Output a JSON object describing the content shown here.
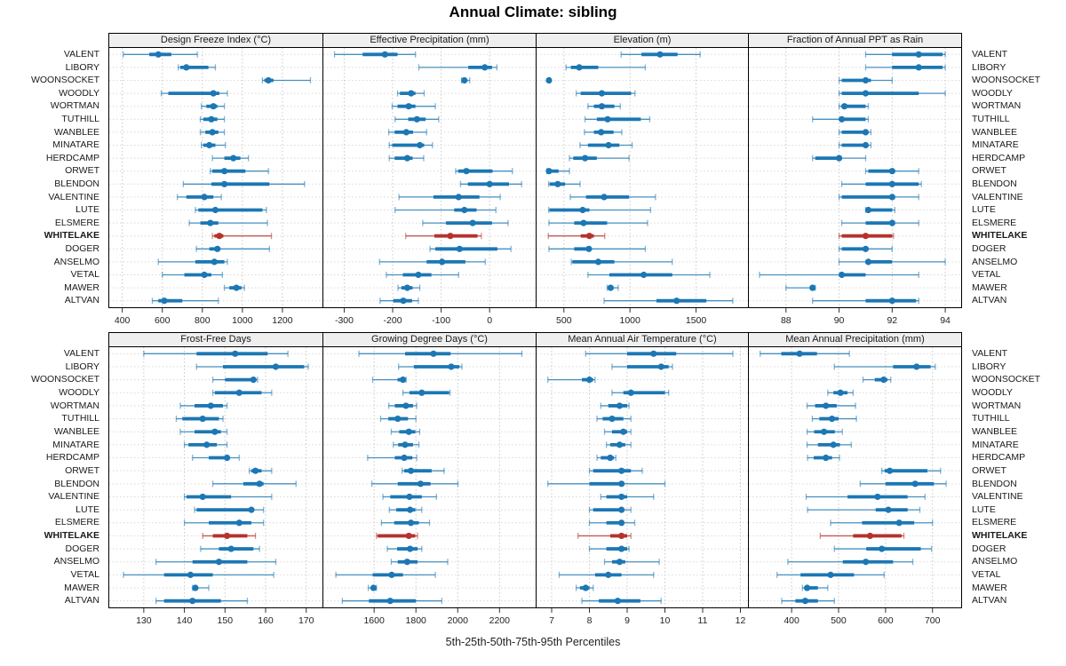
{
  "title": "Annual Climate: sibling",
  "caption": "5th-25th-50th-75th-95th Percentiles",
  "percentile_labels": [
    "5th",
    "25th",
    "50th",
    "75th",
    "95th"
  ],
  "highlight_station": "WHITELAKE",
  "stations": [
    "VALENT",
    "LIBORY",
    "WOONSOCKET",
    "WOODLY",
    "WORTMAN",
    "TUTHILL",
    "WANBLEE",
    "MINATARE",
    "HERDCAMP",
    "ORWET",
    "BLENDON",
    "VALENTINE",
    "LUTE",
    "ELSMERE",
    "WHITELAKE",
    "DOGER",
    "ANSELMO",
    "VETAL",
    "MAWER",
    "ALTVAN"
  ],
  "colors": {
    "series": "#1c77b4",
    "highlight": "#b5322d",
    "header_bg": "#efefef",
    "border": "#000000",
    "gridline": "#c9c9c9",
    "rowline": "#d9d9d9",
    "tick_text": "#222222"
  },
  "chart_data": [
    {
      "type": "dot-whisker",
      "block": 0,
      "title": "Design Freeze Index (°C)",
      "xlim": [
        335,
        1400
      ],
      "ticks": [
        400,
        600,
        800,
        1000,
        1200
      ],
      "values": [
        [
          405,
          535,
          580,
          645,
          775
        ],
        [
          680,
          690,
          720,
          830,
          865
        ],
        [
          1100,
          1110,
          1130,
          1155,
          1340
        ],
        [
          595,
          630,
          855,
          885,
          925
        ],
        [
          795,
          820,
          855,
          875,
          910
        ],
        [
          790,
          805,
          845,
          875,
          910
        ],
        [
          790,
          815,
          850,
          880,
          910
        ],
        [
          795,
          805,
          835,
          865,
          915
        ],
        [
          850,
          910,
          955,
          990,
          1030
        ],
        [
          840,
          850,
          910,
          1015,
          1130
        ],
        [
          705,
          845,
          910,
          1135,
          1310
        ],
        [
          675,
          720,
          810,
          855,
          895
        ],
        [
          765,
          780,
          865,
          1100,
          1120
        ],
        [
          735,
          790,
          840,
          880,
          1125
        ],
        [
          850,
          860,
          885,
          905,
          1145
        ],
        [
          770,
          835,
          875,
          890,
          1135
        ],
        [
          580,
          765,
          860,
          910,
          925
        ],
        [
          600,
          710,
          810,
          845,
          900
        ],
        [
          910,
          935,
          970,
          995,
          1010
        ],
        [
          550,
          580,
          610,
          700,
          880
        ]
      ]
    },
    {
      "type": "dot-whisker",
      "block": 0,
      "title": "Effective Precipitation (mm)",
      "xlim": [
        -343,
        95
      ],
      "ticks": [
        -300,
        -200,
        -100,
        0
      ],
      "values": [
        [
          -320,
          -262,
          -216,
          -190,
          -153
        ],
        [
          -146,
          -44,
          -10,
          5,
          15
        ],
        [
          -58,
          -55,
          -52,
          -46,
          -41
        ],
        [
          -190,
          -185,
          -162,
          -153,
          -135
        ],
        [
          -201,
          -190,
          -167,
          -153,
          -112
        ],
        [
          -195,
          -168,
          -150,
          -132,
          -105
        ],
        [
          -208,
          -196,
          -172,
          -158,
          -130
        ],
        [
          -207,
          -201,
          -144,
          -135,
          -118
        ],
        [
          -207,
          -196,
          -170,
          -159,
          -136
        ],
        [
          -70,
          -65,
          -48,
          6,
          47
        ],
        [
          -60,
          -45,
          0,
          40,
          66
        ],
        [
          -187,
          -116,
          -64,
          -21,
          22
        ],
        [
          -195,
          -73,
          -52,
          -27,
          13
        ],
        [
          -138,
          -90,
          -35,
          5,
          38
        ],
        [
          -173,
          -114,
          -81,
          -25,
          -17
        ],
        [
          -123,
          -112,
          -62,
          16,
          44
        ],
        [
          -227,
          -130,
          -98,
          -50,
          -9
        ],
        [
          -213,
          -179,
          -147,
          -120,
          -64
        ],
        [
          -189,
          -182,
          -170,
          -159,
          -144
        ],
        [
          -226,
          -199,
          -178,
          -160,
          -147
        ]
      ]
    },
    {
      "type": "dot-whisker",
      "block": 0,
      "title": "Elevation (m)",
      "xlim": [
        293,
        1893
      ],
      "ticks": [
        500,
        1000,
        1500
      ],
      "values": [
        [
          933,
          1087,
          1227,
          1360,
          1531
        ],
        [
          516,
          553,
          616,
          760,
          1116
        ],
        [
          380,
          383,
          387,
          391,
          396
        ],
        [
          593,
          627,
          787,
          1009,
          1038
        ],
        [
          682,
          727,
          787,
          882,
          927
        ],
        [
          660,
          749,
          831,
          1082,
          1149
        ],
        [
          656,
          727,
          782,
          876,
          938
        ],
        [
          622,
          682,
          838,
          920,
          1016
        ],
        [
          542,
          571,
          660,
          749,
          993
        ],
        [
          371,
          375,
          387,
          460,
          542
        ],
        [
          385,
          393,
          453,
          509,
          622
        ],
        [
          549,
          667,
          804,
          993,
          1193
        ],
        [
          385,
          391,
          642,
          693,
          1156
        ],
        [
          387,
          578,
          649,
          827,
          1133
        ],
        [
          382,
          627,
          693,
          727,
          809
        ],
        [
          387,
          578,
          689,
          704,
          1116
        ],
        [
          556,
          564,
          760,
          882,
          1320
        ],
        [
          682,
          844,
          1104,
          1320,
          1604
        ],
        [
          827,
          838,
          853,
          876,
          911
        ],
        [
          804,
          1200,
          1353,
          1578,
          1778
        ]
      ]
    },
    {
      "type": "dot-whisker",
      "block": 0,
      "title": "Fraction of Annual PPT as Rain",
      "xlim": [
        86.6,
        94.6
      ],
      "ticks": [
        88,
        90,
        92,
        94
      ],
      "values": [
        [
          91,
          92,
          93,
          93.9,
          94
        ],
        [
          91,
          92,
          93,
          93.9,
          94
        ],
        [
          90,
          90.1,
          91,
          91.2,
          92
        ],
        [
          90,
          90.1,
          91,
          93,
          94
        ],
        [
          90,
          90.1,
          90.2,
          91,
          91.1
        ],
        [
          89,
          90,
          90.1,
          91,
          91.1
        ],
        [
          90,
          90.1,
          91,
          91.1,
          91.2
        ],
        [
          90,
          90.1,
          91,
          91.1,
          91.2
        ],
        [
          89,
          89.1,
          90,
          90.1,
          91
        ],
        [
          91,
          91.1,
          92,
          92.1,
          93
        ],
        [
          90.1,
          91,
          92,
          93,
          93.1
        ],
        [
          90,
          90.1,
          92,
          92.1,
          93
        ],
        [
          91,
          91.05,
          91.1,
          92,
          92.1
        ],
        [
          90.1,
          91,
          92,
          92.1,
          93
        ],
        [
          90,
          90.1,
          91,
          92,
          92.05
        ],
        [
          90,
          90.1,
          91,
          91.1,
          92
        ],
        [
          90,
          91,
          91.1,
          92,
          94
        ],
        [
          87,
          90,
          90.1,
          91,
          93
        ],
        [
          88,
          88.9,
          89,
          89.05,
          89.1
        ],
        [
          89,
          91,
          92,
          92.9,
          93
        ]
      ]
    },
    {
      "type": "dot-whisker",
      "block": 1,
      "title": "Frost-Free Days",
      "xlim": [
        121.5,
        174
      ],
      "ticks": [
        130,
        140,
        150,
        160,
        170
      ],
      "values": [
        [
          130,
          143,
          152.5,
          160.5,
          165.5
        ],
        [
          143,
          149.5,
          162.5,
          169.5,
          170.5
        ],
        [
          147,
          150,
          157,
          157.5,
          158
        ],
        [
          147,
          147.5,
          153.5,
          159,
          161.5
        ],
        [
          139,
          142.5,
          146.5,
          149.5,
          150.5
        ],
        [
          138,
          139.5,
          144.5,
          148.5,
          149.5
        ],
        [
          139,
          142.5,
          147.5,
          149,
          150.5
        ],
        [
          140,
          141,
          145.5,
          148,
          150.5
        ],
        [
          142,
          146,
          150.5,
          151,
          153.5
        ],
        [
          156,
          156.5,
          157.5,
          159,
          161.5
        ],
        [
          147,
          154.5,
          158.5,
          159.5,
          167.5
        ],
        [
          140,
          140.5,
          144.5,
          151.5,
          161.5
        ],
        [
          142.5,
          143,
          156.5,
          157,
          159.5
        ],
        [
          140,
          146,
          153.5,
          156.5,
          159.5
        ],
        [
          144.5,
          147,
          150.5,
          155.5,
          157.5
        ],
        [
          144,
          148.5,
          151.5,
          157,
          158.5
        ],
        [
          133,
          142,
          148.5,
          155.5,
          162.5
        ],
        [
          125,
          135,
          141.5,
          147,
          162
        ],
        [
          142,
          142.2,
          142.7,
          143,
          146
        ],
        [
          133,
          135,
          142,
          149,
          155.5
        ]
      ]
    },
    {
      "type": "dot-whisker",
      "block": 1,
      "title": "Growing Degree Days (°C)",
      "xlim": [
        1357,
        2373
      ],
      "ticks": [
        1600,
        1800,
        2000,
        2200
      ],
      "values": [
        [
          1527,
          1748,
          1884,
          1966,
          2307
        ],
        [
          1717,
          1790,
          1969,
          2008,
          2020
        ],
        [
          1593,
          1712,
          1738,
          1750,
          1753
        ],
        [
          1738,
          1769,
          1828,
          1959,
          1963
        ],
        [
          1670,
          1699,
          1752,
          1786,
          1804
        ],
        [
          1631,
          1668,
          1713,
          1762,
          1800
        ],
        [
          1682,
          1720,
          1766,
          1797,
          1818
        ],
        [
          1692,
          1715,
          1748,
          1786,
          1814
        ],
        [
          1569,
          1699,
          1744,
          1783,
          1804
        ],
        [
          1734,
          1744,
          1776,
          1875,
          1935
        ],
        [
          1589,
          1713,
          1822,
          1870,
          2001
        ],
        [
          1642,
          1677,
          1769,
          1828,
          1898
        ],
        [
          1673,
          1706,
          1772,
          1797,
          1828
        ],
        [
          1635,
          1696,
          1776,
          1814,
          1865
        ],
        [
          1611,
          1617,
          1766,
          1797,
          1808
        ],
        [
          1663,
          1710,
          1772,
          1808,
          1828
        ],
        [
          1682,
          1713,
          1758,
          1808,
          1952
        ],
        [
          1417,
          1593,
          1684,
          1738,
          1893
        ],
        [
          1572,
          1590,
          1597,
          1603,
          1611
        ],
        [
          1448,
          1575,
          1677,
          1800,
          1924
        ]
      ]
    },
    {
      "type": "dot-whisker",
      "block": 1,
      "title": "Mean Annual Air Temperature (°C)",
      "xlim": [
        6.6,
        12.2
      ],
      "ticks": [
        7,
        8,
        9,
        10,
        11,
        12
      ],
      "values": [
        [
          7.9,
          9.0,
          9.7,
          10.3,
          11.8
        ],
        [
          8.6,
          9.0,
          9.9,
          10.1,
          10.2
        ],
        [
          6.9,
          7.8,
          8.0,
          8.1,
          8.15
        ],
        [
          8.6,
          8.9,
          9.1,
          10.0,
          10.1
        ],
        [
          8.3,
          8.5,
          8.8,
          9.0,
          9.05
        ],
        [
          8.2,
          8.35,
          8.6,
          8.9,
          9.1
        ],
        [
          8.4,
          8.6,
          8.9,
          9.0,
          9.1
        ],
        [
          8.45,
          8.55,
          8.8,
          8.95,
          9.1
        ],
        [
          8.2,
          8.3,
          8.55,
          8.65,
          8.7
        ],
        [
          8.0,
          8.1,
          8.85,
          9.1,
          9.4
        ],
        [
          6.9,
          8.0,
          8.85,
          8.9,
          10.0
        ],
        [
          8.3,
          8.45,
          8.85,
          9.0,
          9.7
        ],
        [
          8.0,
          8.1,
          8.85,
          8.9,
          9.1
        ],
        [
          8.0,
          8.45,
          8.85,
          8.9,
          9.2
        ],
        [
          7.7,
          8.55,
          8.85,
          9.0,
          9.1
        ],
        [
          8.0,
          8.45,
          8.85,
          9.0,
          9.05
        ],
        [
          8.4,
          8.6,
          8.8,
          8.95,
          9.85
        ],
        [
          7.2,
          8.15,
          8.5,
          8.85,
          9.7
        ],
        [
          7.65,
          7.75,
          7.9,
          8.0,
          8.1
        ],
        [
          7.8,
          8.25,
          8.75,
          9.35,
          9.9
        ]
      ]
    },
    {
      "type": "dot-whisker",
      "block": 1,
      "title": "Mean Annual Precipitation (mm)",
      "xlim": [
        309,
        761
      ],
      "ticks": [
        400,
        500,
        600,
        700
      ],
      "values": [
        [
          333,
          378,
          417,
          454,
          523
        ],
        [
          491,
          616,
          666,
          696,
          706
        ],
        [
          552,
          577,
          596,
          604,
          611
        ],
        [
          477,
          489,
          504,
          519,
          531
        ],
        [
          433,
          450,
          473,
          496,
          536
        ],
        [
          444,
          459,
          486,
          500,
          538
        ],
        [
          433,
          448,
          469,
          492,
          508
        ],
        [
          433,
          456,
          489,
          503,
          527
        ],
        [
          434,
          447,
          473,
          486,
          502
        ],
        [
          592,
          598,
          609,
          689,
          717
        ],
        [
          546,
          600,
          663,
          703,
          729
        ],
        [
          431,
          519,
          583,
          647,
          684
        ],
        [
          434,
          579,
          606,
          647,
          673
        ],
        [
          483,
          550,
          629,
          661,
          700
        ],
        [
          461,
          531,
          567,
          634,
          639
        ],
        [
          491,
          559,
          592,
          675,
          698
        ],
        [
          392,
          509,
          558,
          616,
          658
        ],
        [
          369,
          419,
          483,
          533,
          597
        ],
        [
          423,
          427,
          433,
          456,
          477
        ],
        [
          379,
          408,
          429,
          456,
          491
        ]
      ]
    }
  ]
}
